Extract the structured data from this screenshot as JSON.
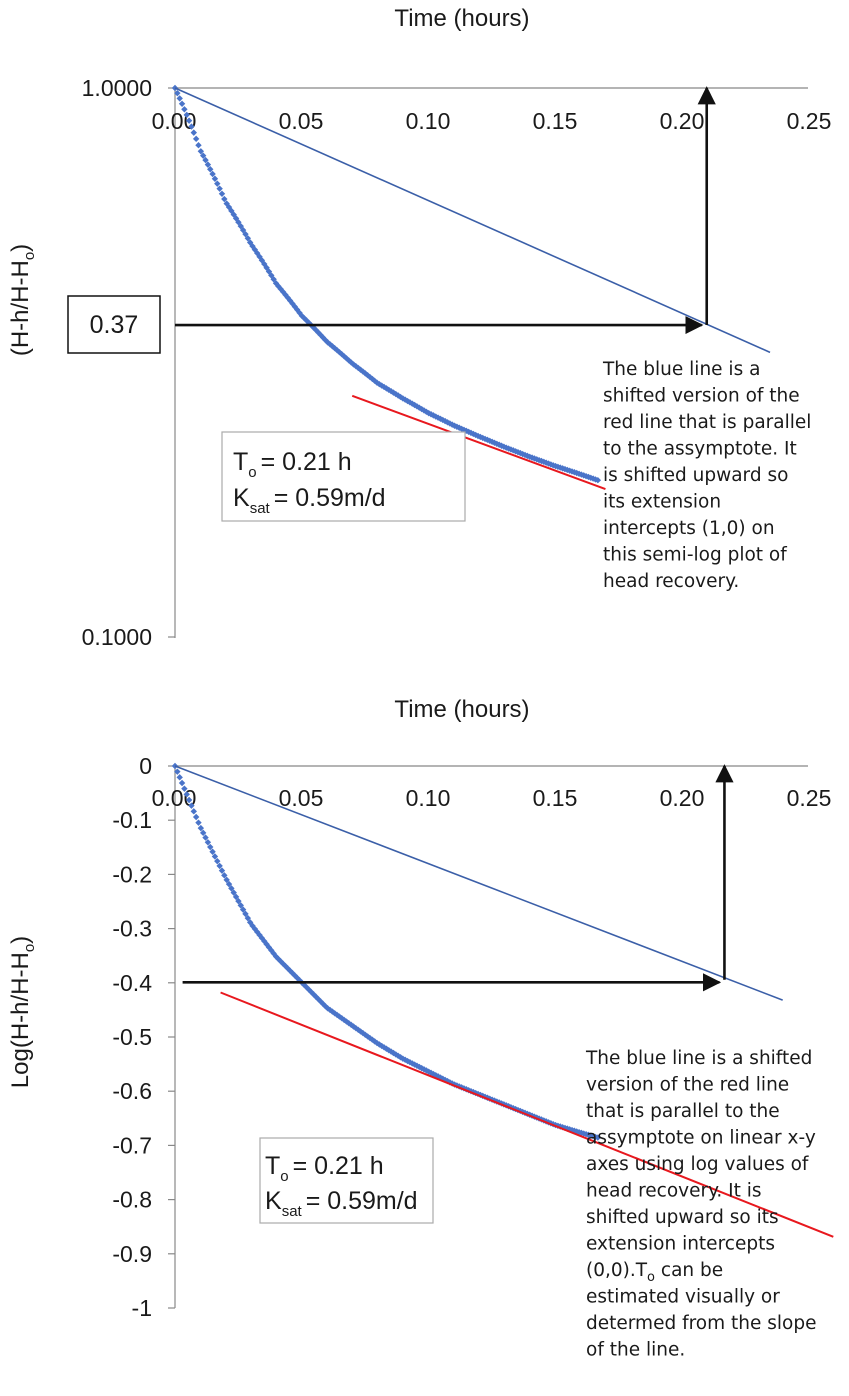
{
  "colors": {
    "data_points": "#4a74c9",
    "blue_line": "#3b5fa8",
    "red_line": "#e8181e",
    "arrow": "#111111",
    "axis": "#888888"
  },
  "chart_data": [
    {
      "type": "scatter",
      "y_scale": "log",
      "x_title": "Time (hours)",
      "y_title": "(H-h/H-Ho)",
      "x_ticks": [
        "0.00",
        "0.05",
        "0.10",
        "0.15",
        "0.20",
        "0.25"
      ],
      "y_ticks": [
        "1.0000",
        "0.1000"
      ],
      "xlim": [
        0,
        0.25
      ],
      "ylim": [
        0.1,
        1.0
      ],
      "series": [
        {
          "kind": "points",
          "x": [
            0,
            0.01,
            0.02,
            0.03,
            0.04,
            0.05,
            0.06,
            0.07,
            0.08,
            0.09,
            0.1,
            0.11,
            0.12,
            0.13,
            0.14,
            0.15,
            0.16,
            0.167
          ],
          "y": [
            1.0,
            0.77,
            0.62,
            0.52,
            0.44,
            0.385,
            0.345,
            0.315,
            0.29,
            0.272,
            0.256,
            0.243,
            0.232,
            0.222,
            0.213,
            0.205,
            0.198,
            0.193
          ]
        },
        {
          "kind": "line",
          "color_key": "blue_line",
          "x": [
            0,
            0.235
          ],
          "y": [
            1.0,
            0.33
          ]
        },
        {
          "kind": "line",
          "color_key": "red_line",
          "x": [
            0.07,
            0.17
          ],
          "y": [
            0.275,
            0.186
          ]
        },
        {
          "kind": "arrow",
          "x": [
            0,
            0.208
          ],
          "y": [
            0.37,
            0.37
          ]
        },
        {
          "kind": "arrow",
          "x": [
            0.21,
            0.21
          ],
          "y": [
            0.37,
            1.0
          ]
        }
      ],
      "value_box": "0.37",
      "param_box": {
        "t_label": "T",
        "t_sub": "o",
        "t_value": "= 0.21 h",
        "k_label": "K",
        "k_sub": "sat",
        "k_value": "= 0.59m/d"
      },
      "annotation_lines": [
        "The blue line is a",
        "shifted version of the",
        "red line that is parallel",
        "to the assymptote. It",
        "is shifted upward so",
        "its extension",
        "intercepts (1,0) on",
        "this semi-log plot of",
        "head recovery."
      ]
    },
    {
      "type": "scatter",
      "x_title": "Time (hours)",
      "y_title": "Log(H-h/H-Ho)",
      "x_ticks": [
        "0.00",
        "0.05",
        "0.10",
        "0.15",
        "0.20",
        "0.25"
      ],
      "y_ticks": [
        "0",
        "-0.1",
        "-0.2",
        "-0.3",
        "-0.4",
        "-0.5",
        "-0.6",
        "-0.7",
        "-0.8",
        "-0.9",
        "-1"
      ],
      "xlim": [
        0,
        0.25
      ],
      "ylim": [
        -1,
        0
      ],
      "series": [
        {
          "kind": "points",
          "x": [
            0,
            0.01,
            0.02,
            0.03,
            0.04,
            0.05,
            0.06,
            0.07,
            0.08,
            0.09,
            0.1,
            0.11,
            0.12,
            0.13,
            0.14,
            0.15,
            0.16,
            0.167
          ],
          "y": [
            0,
            -0.12,
            -0.22,
            -0.31,
            -0.375,
            -0.425,
            -0.475,
            -0.51,
            -0.545,
            -0.575,
            -0.6,
            -0.625,
            -0.645,
            -0.665,
            -0.685,
            -0.705,
            -0.72,
            -0.73
          ]
        },
        {
          "kind": "line",
          "color_key": "blue_line",
          "x": [
            0,
            0.24
          ],
          "y": [
            0,
            -0.46
          ]
        },
        {
          "kind": "line",
          "color_key": "red_line",
          "x": [
            0.018,
            0.26
          ],
          "y": [
            -0.445,
            -0.925
          ]
        },
        {
          "kind": "arrow",
          "x": [
            0.003,
            0.215
          ],
          "y": [
            -0.425,
            -0.425
          ]
        },
        {
          "kind": "arrow",
          "x": [
            0.217,
            0.217
          ],
          "y": [
            -0.42,
            0
          ]
        }
      ],
      "param_box": {
        "t_label": "T",
        "t_sub": "o",
        "t_value": "= 0.21 h",
        "k_label": "K",
        "k_sub": "sat",
        "k_value": "= 0.59m/d"
      },
      "annotation_lines": [
        "The blue line is a shifted",
        "version of the red line",
        "that is parallel to the",
        "assymptote on linear x-y",
        "axes using log values of",
        "head recovery. It is",
        "shifted upward so its",
        "extension intercepts",
        "(0,0).To can be",
        "estimated visually or",
        "determed from the slope",
        "of the line."
      ]
    }
  ]
}
